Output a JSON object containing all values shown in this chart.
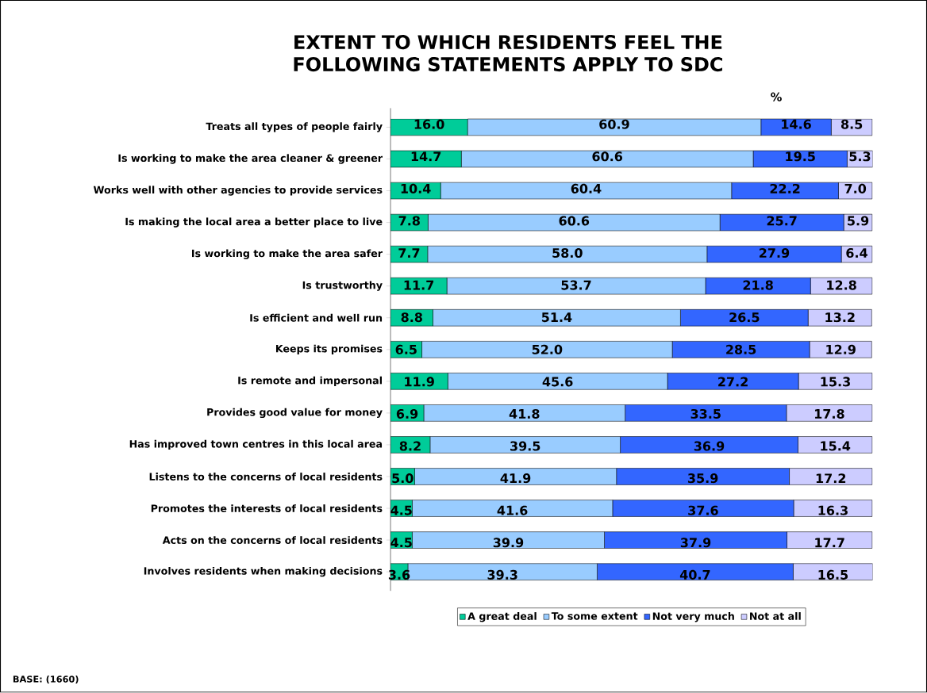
{
  "chart_data": {
    "type": "bar",
    "orientation": "horizontal",
    "stacked": true,
    "legend": "bottom",
    "title": "EXTENT TO WHICH RESIDENTS FEEL THE FOLLOWING STATEMENTS APPLY TO SDC",
    "xlabel": "%",
    "annotations": [
      "BASE: (1660)"
    ],
    "categories": [
      "Treats all types of people fairly",
      "Is working to make the area cleaner & greener",
      "Works well with other agencies to provide services",
      "Is making the local area a better place to live",
      "Is working to make the area safer",
      "Is trustworthy",
      "Is efficient and well run",
      "Keeps its promises",
      "Is remote and impersonal",
      "Provides good value for money",
      "Has improved town centres in this local area",
      "Listens to the concerns of local residents",
      "Promotes the interests of local residents",
      "Acts on the concerns of local residents",
      "Involves residents when making decisions"
    ],
    "series": [
      {
        "name": "A great deal",
        "color": "#00cc99",
        "values": [
          16.0,
          14.7,
          10.4,
          7.8,
          7.7,
          11.7,
          8.8,
          6.5,
          11.9,
          6.9,
          8.2,
          5.0,
          4.5,
          4.5,
          3.6
        ],
        "value_labels": [
          "16.0",
          "14.7",
          "10.4",
          "7.8",
          "7.7",
          "11.7",
          "8.8",
          "6.5",
          "11.9",
          "6.9",
          "8.2",
          "5.0",
          "4.5",
          "4.5",
          "3.6"
        ]
      },
      {
        "name": "To some extent",
        "color": "#99ccff",
        "values": [
          60.9,
          60.6,
          60.4,
          60.6,
          58.0,
          53.7,
          51.4,
          52.0,
          45.6,
          41.8,
          39.5,
          41.9,
          41.6,
          39.9,
          39.3
        ],
        "value_labels": [
          "60.9",
          "60.6",
          "60.4",
          "60.6",
          "58.0",
          "53.7",
          "51.4",
          "52.0",
          "45.6",
          "41.8",
          "39.5",
          "41.9",
          "41.6",
          "39.9",
          "39.3"
        ]
      },
      {
        "name": "Not very much",
        "color": "#3366ff",
        "values": [
          14.6,
          19.5,
          22.2,
          25.7,
          27.9,
          21.8,
          26.5,
          28.5,
          27.2,
          33.5,
          36.9,
          35.9,
          37.6,
          37.9,
          40.7
        ],
        "value_labels": [
          "14.6",
          "19.5",
          "22.2",
          "25.7",
          "27.9",
          "21.8",
          "26.5",
          "28.5",
          "27.2",
          "33.5",
          "36.9",
          "35.9",
          "37.6",
          "37.9",
          "40.7"
        ]
      },
      {
        "name": "Not at all",
        "color": "#ccccff",
        "values": [
          8.5,
          5.3,
          7.0,
          5.9,
          6.4,
          12.8,
          13.2,
          12.9,
          15.3,
          17.8,
          15.4,
          17.2,
          16.3,
          17.7,
          16.5
        ],
        "value_labels": [
          "8.5",
          "5.3",
          "7.0",
          "5.9",
          "6.4",
          "12.8",
          "13.2",
          "12.9",
          "15.3",
          "17.8",
          "15.4",
          "17.2",
          "16.3",
          "17.7",
          "16.5"
        ]
      }
    ]
  }
}
